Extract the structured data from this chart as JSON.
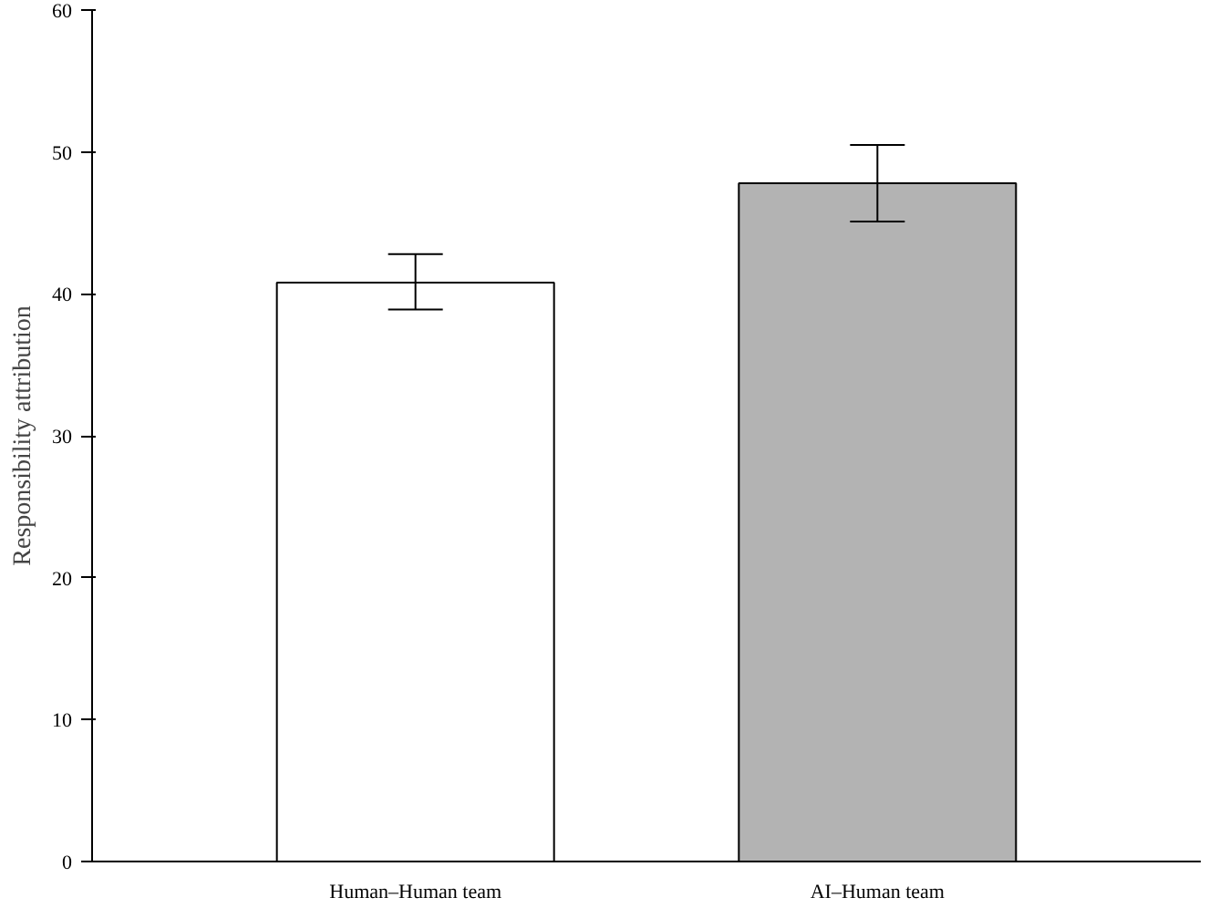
{
  "chart_data": {
    "type": "bar",
    "ylabel": "Responsibility attribution",
    "categories": [
      "Human–Human team",
      "AI–Human team"
    ],
    "values": [
      40.8,
      47.8
    ],
    "colors": [
      "#ffffff",
      "#b3b3b3"
    ],
    "errors": [
      [
        38.9,
        42.8
      ],
      [
        45.1,
        50.5
      ]
    ],
    "ylim": [
      0,
      60
    ],
    "yticks": [
      0,
      10,
      20,
      30,
      40,
      50,
      60
    ],
    "grid": false
  }
}
